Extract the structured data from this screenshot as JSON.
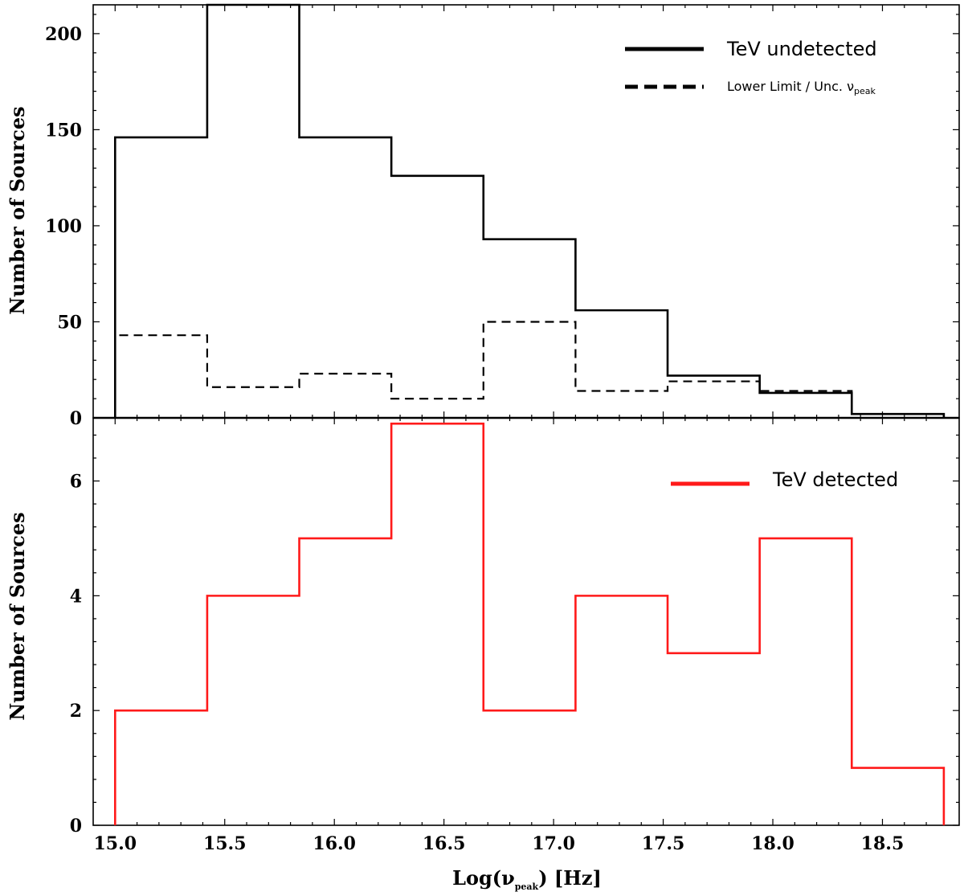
{
  "chart_data": [
    {
      "type": "histogram",
      "panel": "top",
      "ylabel": "Number of Sources",
      "ylim": [
        0,
        215
      ],
      "yticks": [
        0,
        50,
        100,
        150,
        200
      ],
      "bin_edges": [
        15.0,
        15.42,
        15.84,
        16.26,
        16.68,
        17.1,
        17.52,
        17.94,
        18.36,
        18.78
      ],
      "series": [
        {
          "name": "TeV undetected",
          "style": "solid",
          "color": "#000000",
          "values": [
            146,
            215,
            146,
            126,
            93,
            56,
            22,
            13,
            2
          ]
        },
        {
          "name": "Lower Limit / Unc. ν",
          "name_subscript": "peak",
          "style": "dashed",
          "color": "#000000",
          "values": [
            43,
            16,
            23,
            10,
            50,
            14,
            19,
            14,
            2
          ]
        }
      ],
      "legend_position": "top-right"
    },
    {
      "type": "histogram",
      "panel": "bottom",
      "ylabel": "Number of Sources",
      "xlabel": "Log(ν",
      "xlabel_subscript": "peak",
      "xlabel_suffix": ") [Hz]",
      "ylim": [
        0,
        7.1
      ],
      "yticks": [
        0,
        2,
        4,
        6
      ],
      "xlim": [
        14.9,
        18.85
      ],
      "xticks": [
        "15.0",
        "15.5",
        "16.0",
        "16.5",
        "17.0",
        "17.5",
        "18.0",
        "18.5"
      ],
      "bin_edges": [
        15.0,
        15.42,
        15.84,
        16.26,
        16.68,
        17.1,
        17.52,
        17.94,
        18.36,
        18.78
      ],
      "series": [
        {
          "name": "TeV detected",
          "style": "solid",
          "color": "#ff1a1a",
          "values": [
            2,
            4,
            5,
            7,
            2,
            4,
            3,
            5,
            1
          ]
        }
      ],
      "legend_position": "top-right"
    }
  ]
}
